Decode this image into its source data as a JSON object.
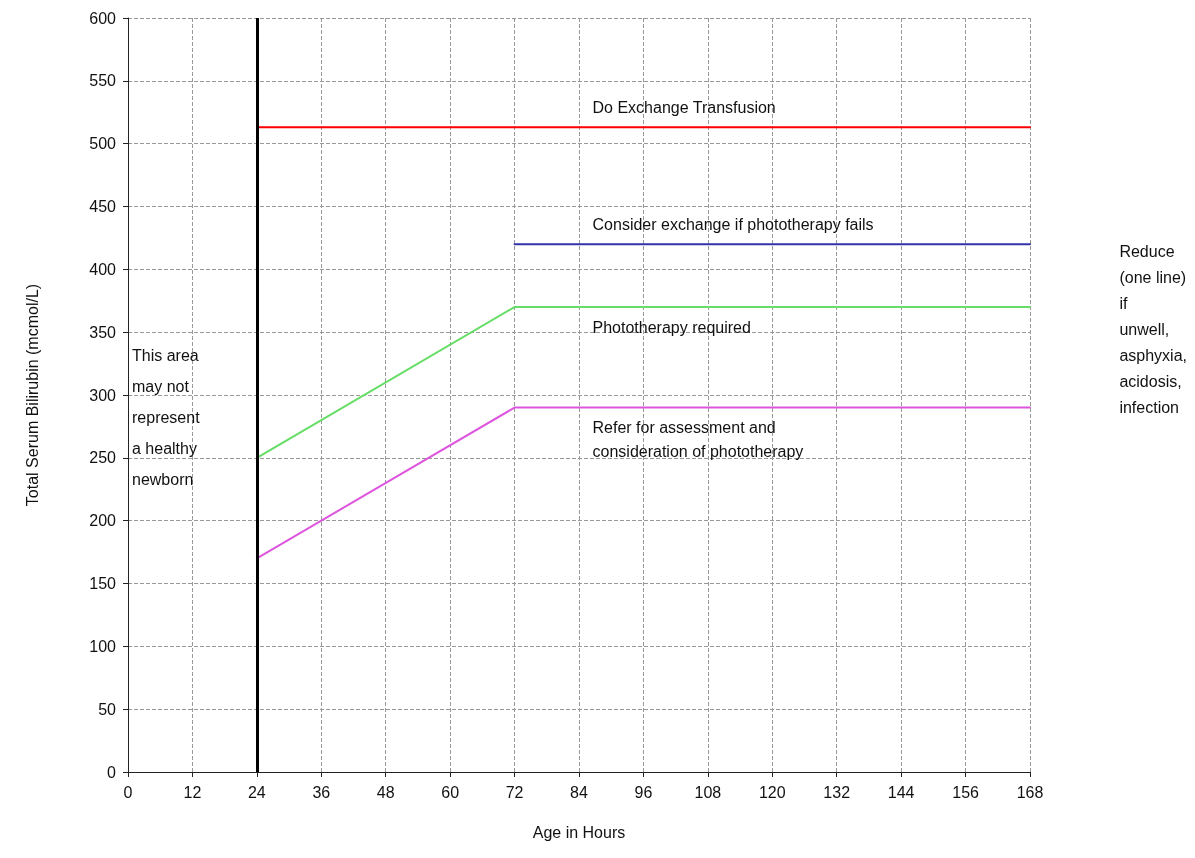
{
  "chart_data": {
    "type": "line",
    "xlabel": "Age in Hours",
    "ylabel": "Total Serum Bilirubin (mcmol/L)",
    "xlim": [
      0,
      168
    ],
    "xticks": [
      0,
      12,
      24,
      36,
      48,
      60,
      72,
      84,
      96,
      108,
      120,
      132,
      144,
      156,
      168
    ],
    "ylim": [
      0,
      600
    ],
    "yticks": [
      0,
      50,
      100,
      150,
      200,
      250,
      300,
      350,
      400,
      450,
      500,
      550,
      600
    ],
    "grid": true,
    "marker": "none",
    "line_style": "solid",
    "series": [
      {
        "name": "Do Exchange Transfusion",
        "color": "#ff0000",
        "x": [
          24,
          168
        ],
        "values": [
          513,
          513
        ]
      },
      {
        "name": "Consider exchange if phototherapy fails",
        "color": "#3333aa",
        "x": [
          72,
          168
        ],
        "values": [
          420,
          420
        ]
      },
      {
        "name": "Phototherapy required",
        "color": "#66dd66",
        "x": [
          24,
          72,
          168
        ],
        "values": [
          250,
          370,
          370
        ]
      },
      {
        "name": "Refer for assessment and\nconsideration of phototherapy",
        "color": "#dd55dd",
        "x": [
          24,
          72,
          168
        ],
        "values": [
          170,
          290,
          290
        ]
      }
    ],
    "ref_lines": [
      {
        "axis": "x",
        "value": 24,
        "color": "#000000"
      }
    ],
    "annotations": [
      "This area\nmay not\nrepresent\na healthy\nnewborn",
      "Reduce\n(one line)\nif\nunwell,\nasphyxia,\nacidosis,\ninfection"
    ]
  }
}
